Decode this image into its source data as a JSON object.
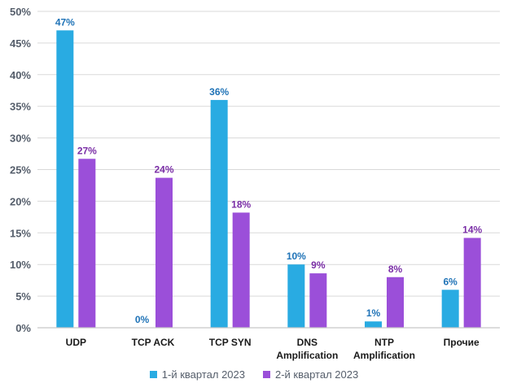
{
  "chart_data": {
    "type": "bar",
    "categories": [
      [
        "UDP"
      ],
      [
        "TCP ACK"
      ],
      [
        "TCP SYN"
      ],
      [
        "DNS",
        "Amplification"
      ],
      [
        "NTP",
        "Amplification"
      ],
      [
        "Прочие"
      ]
    ],
    "series": [
      {
        "name": "1-й квартал 2023",
        "values": [
          47,
          0,
          36,
          10,
          1,
          6
        ],
        "labels": [
          "47%",
          "0%",
          "36%",
          "10%",
          "1%",
          "6%"
        ],
        "color": "#29ABE2",
        "label_color": "#1F73B7"
      },
      {
        "name": "2-й квартал 2023",
        "values": [
          26.7,
          23.7,
          18.2,
          8.6,
          8.0,
          14.2
        ],
        "labels": [
          "27%",
          "24%",
          "18%",
          "9%",
          "8%",
          "14%"
        ],
        "color": "#9B4FD9",
        "label_color": "#7A2EA6"
      }
    ],
    "yticks": [
      "0%",
      "5%",
      "10%",
      "15%",
      "20%",
      "25%",
      "30%",
      "35%",
      "40%",
      "45%",
      "50%"
    ],
    "ylim": [
      0,
      50
    ],
    "grid": true,
    "legend_position": "bottom",
    "title": "",
    "xlabel": "",
    "ylabel": ""
  }
}
